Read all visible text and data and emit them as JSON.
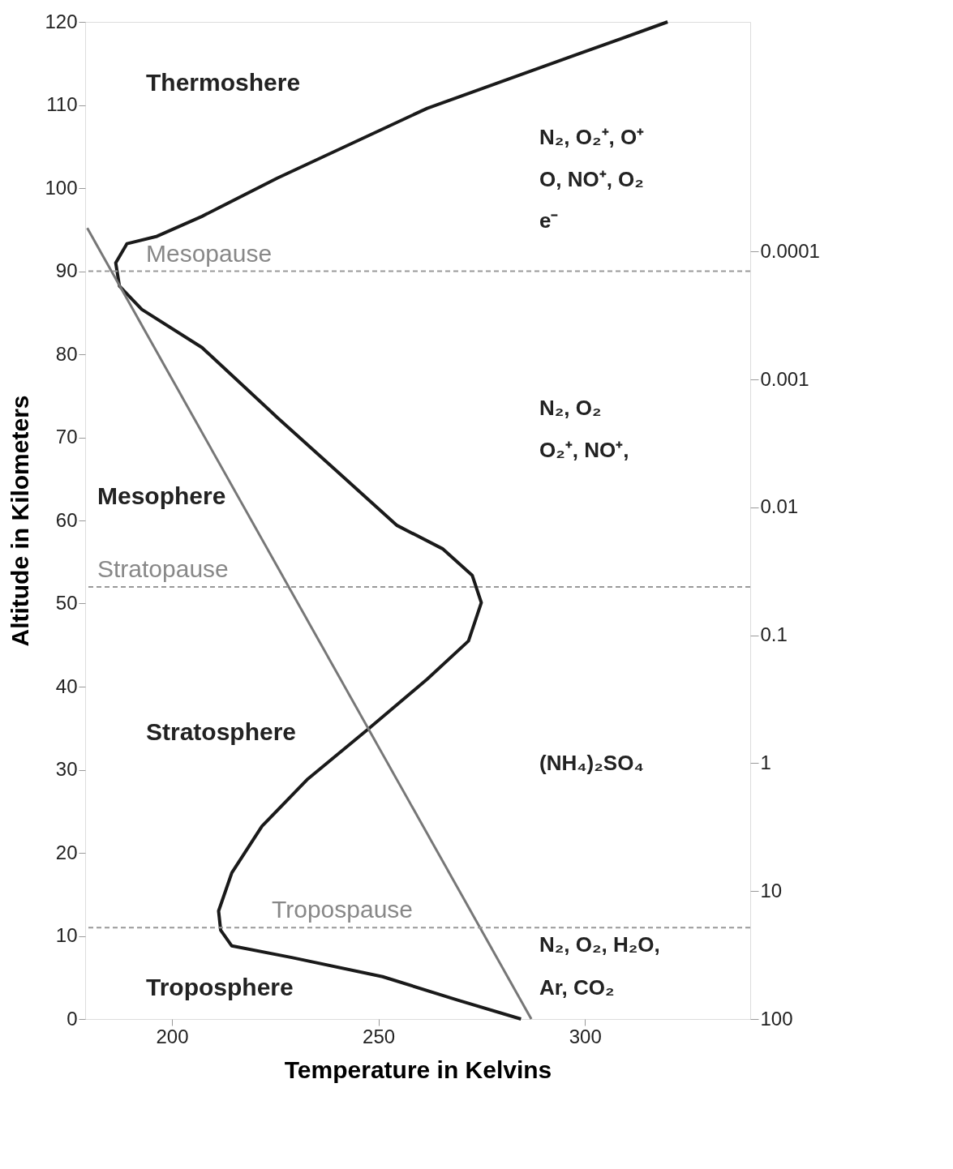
{
  "chart_data": {
    "type": "line",
    "xlabel": "Temperature in Kelvins",
    "ylabel": "Altitude in Kilometers",
    "xlim": [
      179,
      340
    ],
    "xticks": [
      200,
      250,
      300
    ],
    "ylim": [
      0,
      120
    ],
    "yticks": [
      0,
      10,
      20,
      30,
      40,
      50,
      60,
      70,
      80,
      90,
      100,
      110,
      120
    ],
    "y2lim": [
      100,
      1.6e-06
    ],
    "log": "y2",
    "y2ticks": [
      100,
      10,
      1,
      0.1,
      0.01,
      0.001,
      0.0001
    ],
    "series": [
      {
        "color": "#1a1a1a",
        "x": [
          284.5,
          269,
          251,
          229,
          214.5,
          211.8,
          211.3,
          214.5,
          221.8,
          232.7,
          247.3,
          261.8,
          271.8,
          274.9,
          272.7,
          265.5,
          254.5,
          240,
          225.5,
          207.3,
          192.7,
          187.3,
          186.4,
          189.1,
          196.4,
          207.3,
          225.5,
          261.8,
          298.2,
          320
        ],
        "values": [
          0,
          2.3,
          5.1,
          7.4,
          8.8,
          10.7,
          13,
          17.6,
          23.2,
          28.8,
          34.8,
          40.9,
          45.5,
          50.1,
          53.4,
          56.6,
          59.4,
          65.9,
          72.4,
          80.8,
          85.4,
          88.2,
          91,
          93.3,
          94.2,
          96.6,
          101.2,
          109.6,
          116.1,
          120
        ]
      },
      {
        "color": "#777777",
        "x": [
          179.5,
          287
        ],
        "values": [
          95.2,
          0
        ]
      }
    ],
    "ref_lines": [
      {
        "axis": "y",
        "value": 90,
        "label": "Mesopause",
        "color": "#999999",
        "line_style": "dashed"
      },
      {
        "axis": "y",
        "value": 52,
        "label": "Stratopause",
        "color": "#999999",
        "line_style": "dashed"
      },
      {
        "axis": "y",
        "value": 11,
        "label": "Tropospause",
        "color": "#999999",
        "line_style": "dashed"
      }
    ],
    "annotations": [
      "Thermoshere",
      "Mesophere",
      "Stratosphere",
      "Troposphere",
      "N₂, O₂⁺, O⁺",
      "O, NO⁺, O₂",
      "e⁻",
      "N₂, O₂",
      "O₂⁺, NO⁺,",
      "(NH₄)₂SO₄",
      "N₂, O₂, H₂O,",
      "Ar, CO₂"
    ],
    "grid": false,
    "marker": "none",
    "line_style": "solid"
  }
}
